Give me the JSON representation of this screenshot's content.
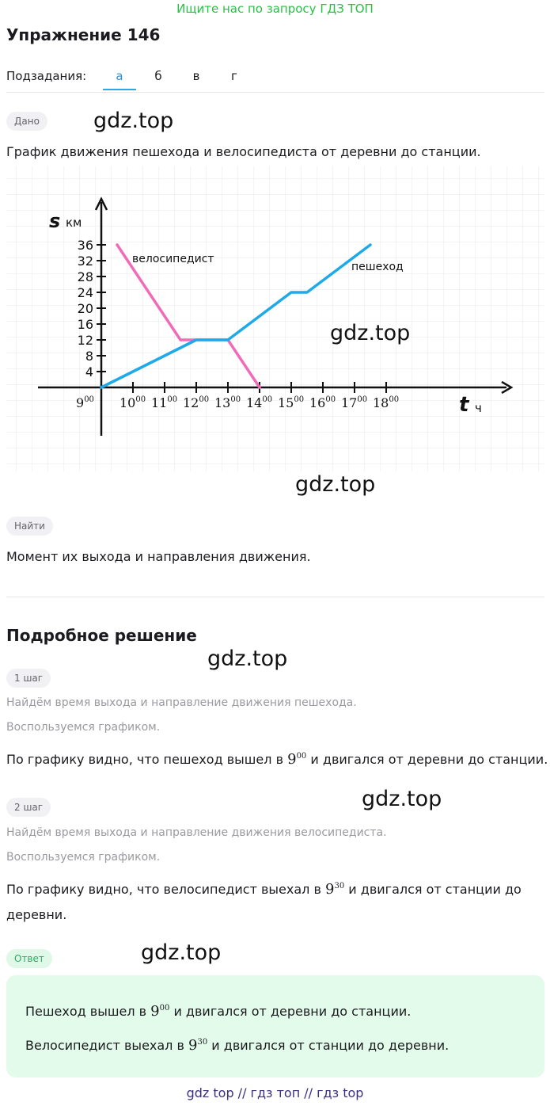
{
  "promo": "Ищите нас по запросу ГДЗ ТОП",
  "title": "Упражнение 146",
  "subtasks": {
    "label": "Подзадания:",
    "items": [
      "а",
      "б",
      "в",
      "г"
    ],
    "active": 0
  },
  "watermark": "gdz.top",
  "given": {
    "chip": "Дано",
    "text": "График движения пешехода и велосипедиста от деревни до станции."
  },
  "chart_data": {
    "type": "line",
    "ylabel": "s",
    "yunit": "км",
    "xlabel": "t",
    "xunit": "ч",
    "y_ticks": [
      "4",
      "8",
      "12",
      "16",
      "20",
      "24",
      "28",
      "32",
      "36"
    ],
    "x_ticks": [
      {
        "base": "9",
        "sup": "00"
      },
      {
        "base": "10",
        "sup": "00"
      },
      {
        "base": "11",
        "sup": "00"
      },
      {
        "base": "12",
        "sup": "00"
      },
      {
        "base": "13",
        "sup": "00"
      },
      {
        "base": "14",
        "sup": "00"
      },
      {
        "base": "15",
        "sup": "00"
      },
      {
        "base": "16",
        "sup": "00"
      },
      {
        "base": "17",
        "sup": "00"
      },
      {
        "base": "18",
        "sup": "00"
      }
    ],
    "series": [
      {
        "name": "велосипедист",
        "color": "#f06bb8",
        "x": [
          9.5,
          11.5,
          13,
          14
        ],
        "y": [
          36,
          12,
          12,
          0
        ]
      },
      {
        "name": "пешеход",
        "color": "#1eaae8",
        "x": [
          9,
          12,
          13,
          15,
          15.5,
          17.5
        ],
        "y": [
          0,
          12,
          12,
          24,
          24,
          36
        ]
      }
    ]
  },
  "find": {
    "chip": "Найти",
    "text": "Момент их выхода и направления движения."
  },
  "solution": {
    "title": "Подробное решение",
    "steps": [
      {
        "chip": "1 шаг",
        "line1": "Найдём время выхода и направление движения пешехода.",
        "line2": "Воспользуемся графиком.",
        "text_a": "По графику видно, что пешеход вышел в",
        "math_base": "9",
        "math_sup": "00",
        "text_b": "и двигался от деревни до станции."
      },
      {
        "chip": "2 шаг",
        "line1": "Найдём время выхода и направление движения велосипедиста.",
        "line2": "Воспользуемся графиком.",
        "text_a": "По графику видно, что велосипедист выехал в",
        "math_base": "9",
        "math_sup": "30",
        "text_b": "и двигался от станции до",
        "text_c": "деревни."
      }
    ]
  },
  "answer": {
    "chip": "Ответ",
    "line1_a": "Пешеход вышел в",
    "line1_base": "9",
    "line1_sup": "00",
    "line1_b": "и двигался от деревни до станции.",
    "line2_a": "Велосипедист выехал в",
    "line2_base": "9",
    "line2_sup": "30",
    "line2_b": "и двигался от станции до деревни."
  },
  "footer": "gdz top  //  гдз топ  //  гдз top"
}
